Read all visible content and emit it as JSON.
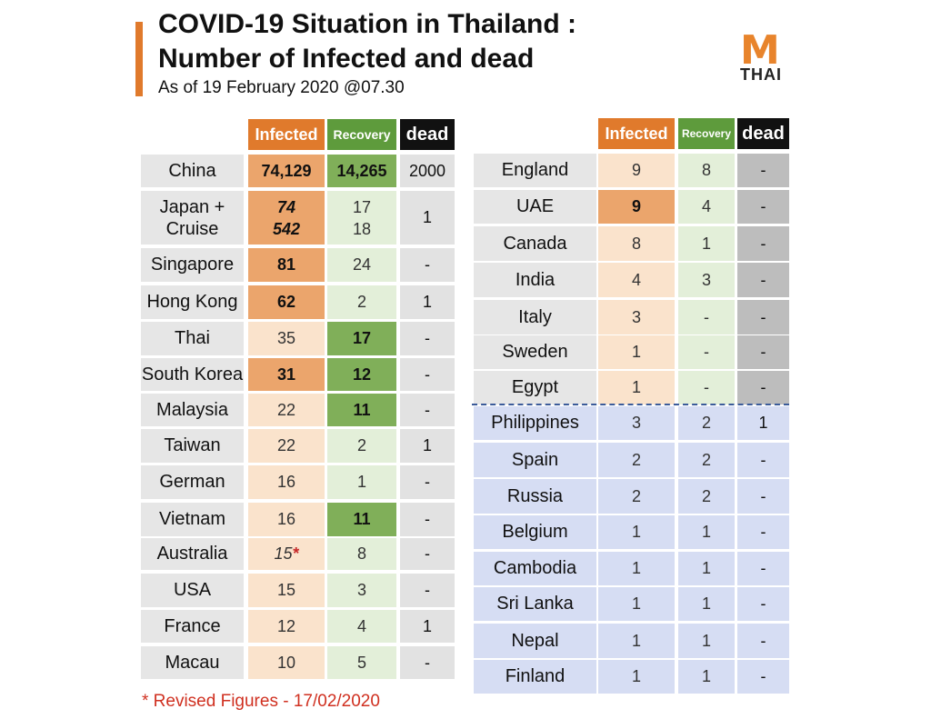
{
  "header": {
    "title_line1": "COVID-19 Situation in Thailand :",
    "title_line2": "Number of Infected and dead",
    "subtitle": "As of 19 February 2020 @07.30",
    "logo_top": "M",
    "logo_bottom": "THAI",
    "accent_color": "#e07a2c"
  },
  "columns": {
    "infected": "Infected",
    "recovery": "Recovery",
    "dead": "dead"
  },
  "left_table": [
    {
      "country": "China",
      "infected": "74,129",
      "recovery": "14,265",
      "dead": "2000"
    },
    {
      "country": "Japan +\nCruise",
      "infected": "74\n542",
      "recovery": "17\n18",
      "dead": "1"
    },
    {
      "country": "Singapore",
      "infected": "81",
      "recovery": "24",
      "dead": "-"
    },
    {
      "country": "Hong Kong",
      "infected": "62",
      "recovery": "2",
      "dead": "1"
    },
    {
      "country": "Thai",
      "infected": "35",
      "recovery": "17",
      "dead": "-"
    },
    {
      "country": "South Korea",
      "infected": "31",
      "recovery": "12",
      "dead": "-"
    },
    {
      "country": "Malaysia",
      "infected": "22",
      "recovery": "11",
      "dead": "-"
    },
    {
      "country": "Taiwan",
      "infected": "22",
      "recovery": "2",
      "dead": "1"
    },
    {
      "country": "German",
      "infected": "16",
      "recovery": "1",
      "dead": "-"
    },
    {
      "country": "Vietnam",
      "infected": "16",
      "recovery": "11",
      "dead": "-"
    },
    {
      "country": "Australia",
      "infected": "15",
      "infected_mark": "*",
      "recovery": "8",
      "dead": "-"
    },
    {
      "country": "USA",
      "infected": "15",
      "recovery": "3",
      "dead": "-"
    },
    {
      "country": "France",
      "infected": "12",
      "recovery": "4",
      "dead": "1"
    },
    {
      "country": "Macau",
      "infected": "10",
      "recovery": "5",
      "dead": "-"
    }
  ],
  "right_table": [
    {
      "country": "England",
      "infected": "9",
      "recovery": "8",
      "dead": "-"
    },
    {
      "country": "UAE",
      "infected": "9",
      "recovery": "4",
      "dead": "-"
    },
    {
      "country": "Canada",
      "infected": "8",
      "recovery": "1",
      "dead": "-"
    },
    {
      "country": "India",
      "infected": "4",
      "recovery": "3",
      "dead": "-"
    },
    {
      "country": "Italy",
      "infected": "3",
      "recovery": "-",
      "dead": "-"
    },
    {
      "country": "Sweden",
      "infected": "1",
      "recovery": "-",
      "dead": "-"
    },
    {
      "country": "Egypt",
      "infected": "1",
      "recovery": "-",
      "dead": "-"
    },
    {
      "country": "Philippines",
      "infected": "3",
      "recovery": "2",
      "dead": "1"
    },
    {
      "country": "Spain",
      "infected": "2",
      "recovery": "2",
      "dead": "-"
    },
    {
      "country": "Russia",
      "infected": "2",
      "recovery": "2",
      "dead": "-"
    },
    {
      "country": "Belgium",
      "infected": "1",
      "recovery": "1",
      "dead": "-"
    },
    {
      "country": "Cambodia",
      "infected": "1",
      "recovery": "1",
      "dead": "-"
    },
    {
      "country": "Sri Lanka",
      "infected": "1",
      "recovery": "1",
      "dead": "-"
    },
    {
      "country": "Nepal",
      "infected": "1",
      "recovery": "1",
      "dead": "-"
    },
    {
      "country": "Finland",
      "infected": "1",
      "recovery": "1",
      "dead": "-"
    }
  ],
  "footnote": "* Revised Figures - 17/02/2020"
}
